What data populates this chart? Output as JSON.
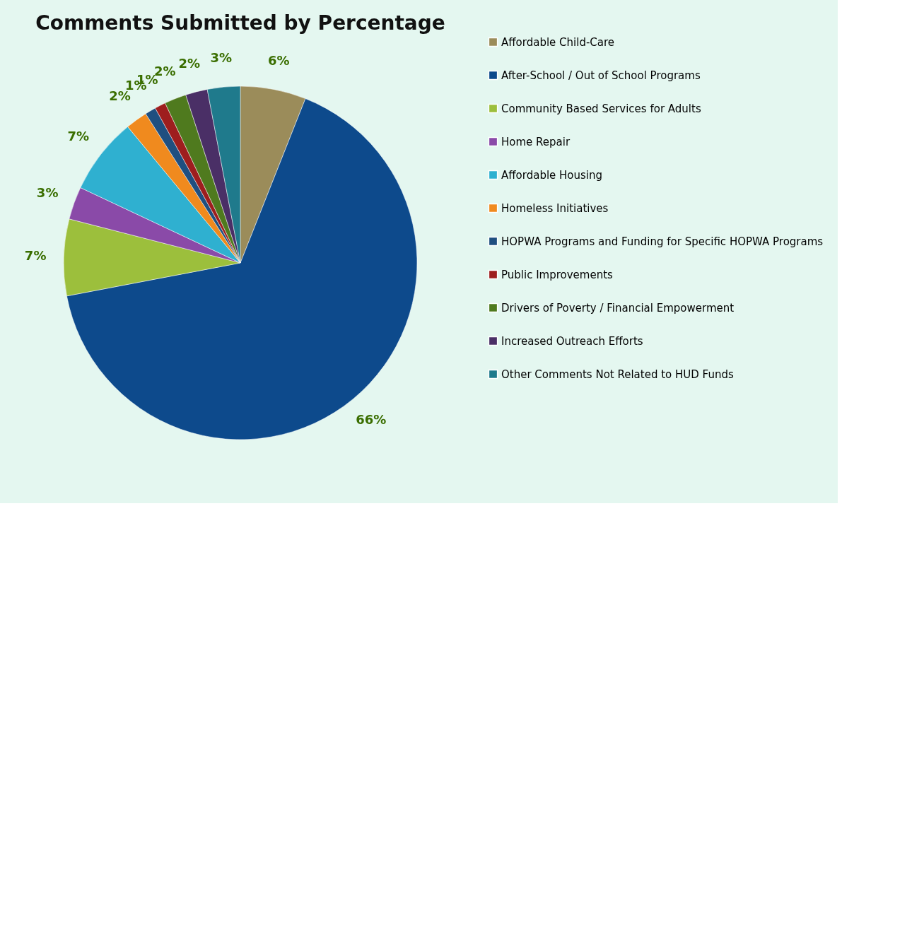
{
  "chart_data": {
    "type": "pie",
    "title": "Comments Submitted by Percentage",
    "categories": [
      "Affordable Child-Care",
      "After-School / Out of School Programs",
      "Community Based Services for Adults",
      "Home Repair",
      "Affordable Housing",
      "Homeless Initiatives",
      "HOPWA Programs and Funding for Specific HOPWA Programs",
      "Public Improvements",
      "Drivers of Poverty / Financial Empowerment",
      "Increased Outreach Efforts",
      "Other Comments Not Related to HUD Funds"
    ],
    "values": [
      6,
      66,
      7,
      3,
      7,
      2,
      1,
      1,
      2,
      2,
      3
    ],
    "value_labels": [
      "6%",
      "66%",
      "7%",
      "3%",
      "7%",
      "2%",
      "1%",
      "1%",
      "2%",
      "2%",
      "3%"
    ],
    "colors": [
      "#9b8c5a",
      "#0d4a8c",
      "#9cbf3c",
      "#8a4aa8",
      "#2fb0d0",
      "#f08a1e",
      "#1f4f80",
      "#9e1e1e",
      "#4f7a1e",
      "#4a2f66",
      "#1f7a8c"
    ],
    "legend": "right"
  }
}
